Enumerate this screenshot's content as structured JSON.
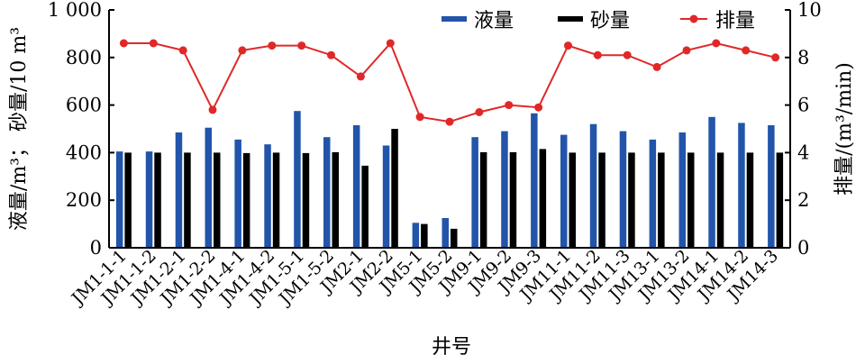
{
  "chart_data": {
    "type": "bar",
    "categories": [
      "JM1-1-1",
      "JM1-1-2",
      "JM1-2-1",
      "JM1-2-2",
      "JM1-4-1",
      "JM1-4-2",
      "JM1-5-1",
      "JM1-5-2",
      "JM2-1",
      "JM2-2",
      "JM5-1",
      "JM5-2",
      "JM9-1",
      "JM9-2",
      "JM9-3",
      "JM11-1",
      "JM11-2",
      "JM11-3",
      "JM13-1",
      "JM13-2",
      "JM14-1",
      "JM14-2",
      "JM14-3"
    ],
    "series": [
      {
        "name": "液量",
        "kind": "bar",
        "axis": "left",
        "color": "#2255aa",
        "values": [
          405,
          405,
          485,
          505,
          455,
          435,
          575,
          465,
          515,
          430,
          105,
          125,
          465,
          490,
          565,
          475,
          520,
          490,
          455,
          485,
          550,
          525,
          515
        ]
      },
      {
        "name": "砂量",
        "kind": "bar",
        "axis": "left",
        "color": "#000000",
        "values": [
          400,
          400,
          400,
          400,
          398,
          400,
          398,
          402,
          345,
          500,
          100,
          80,
          402,
          402,
          415,
          400,
          400,
          400,
          400,
          400,
          400,
          400,
          400
        ]
      },
      {
        "name": "排量",
        "kind": "line",
        "axis": "right",
        "color": "#e02828",
        "values": [
          8.6,
          8.6,
          8.3,
          5.8,
          8.3,
          8.5,
          8.5,
          8.1,
          7.2,
          8.6,
          5.5,
          5.3,
          5.7,
          6.0,
          5.9,
          8.5,
          8.1,
          8.1,
          7.6,
          8.3,
          8.6,
          8.3,
          8.0
        ]
      }
    ],
    "left_axis": {
      "label": "液量/m³； 砂量/10 m³",
      "ylim": [
        0,
        1000
      ],
      "ticks": [
        0,
        200,
        400,
        600,
        800,
        1000
      ],
      "tick_labels": [
        "0",
        "200",
        "400",
        "600",
        "800",
        "1 000"
      ]
    },
    "right_axis": {
      "label": "排量/(m³/min)",
      "ylim": [
        0,
        10
      ],
      "ticks": [
        0,
        2,
        4,
        6,
        8,
        10
      ],
      "tick_labels": [
        "0",
        "2",
        "4",
        "6",
        "8",
        "10"
      ]
    },
    "xlabel": "井号",
    "legend": {
      "position": "top-right",
      "entries": [
        "液量",
        "砂量",
        "排量"
      ]
    },
    "grid": false
  }
}
